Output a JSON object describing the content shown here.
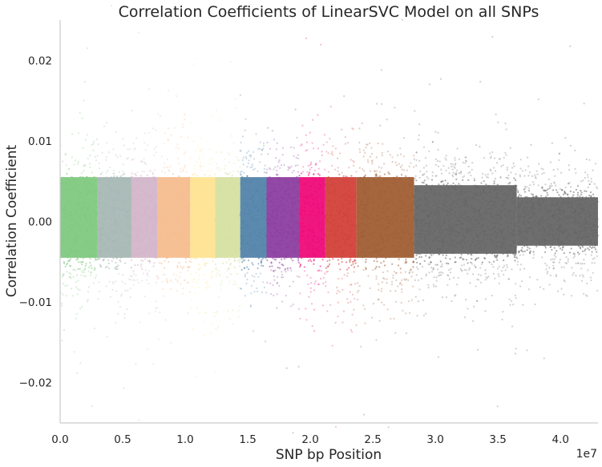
{
  "chart_data": {
    "type": "scatter",
    "title": "Correlation Coefficients of LinearSVC Model on all SNPs",
    "xlabel": "SNP bp Position",
    "ylabel": "Correlation Coefficient",
    "x_offset_label": "1e7",
    "xlim": [
      0,
      4.3
    ],
    "ylim": [
      -0.025,
      0.025
    ],
    "x_ticks": [
      0.0,
      0.5,
      1.0,
      1.5,
      2.0,
      2.5,
      3.0,
      3.5,
      4.0
    ],
    "x_tick_labels": [
      "0.0",
      "0.5",
      "1.0",
      "1.5",
      "2.0",
      "2.5",
      "3.0",
      "3.5",
      "4.0"
    ],
    "y_ticks": [
      0.02,
      0.01,
      0.0,
      -0.01,
      -0.02
    ],
    "y_tick_labels": [
      "0.02",
      "0.01",
      "0.00",
      "−0.01",
      "−0.02"
    ],
    "grid": false,
    "series": [
      {
        "x_range": [
          0.0,
          0.3
        ],
        "core_spread": [
          -0.0055,
          0.0065
        ],
        "color": "#7fc97f"
      },
      {
        "x_range": [
          0.3,
          0.57
        ],
        "core_spread": [
          -0.0055,
          0.0065
        ],
        "color": "#a6b8b5"
      },
      {
        "x_range": [
          0.57,
          0.78
        ],
        "core_spread": [
          -0.0055,
          0.0065
        ],
        "color": "#d3b5c9"
      },
      {
        "x_range": [
          0.78,
          1.04
        ],
        "core_spread": [
          -0.0055,
          0.0065
        ],
        "color": "#f6bd8f"
      },
      {
        "x_range": [
          1.04,
          1.24
        ],
        "core_spread": [
          -0.0055,
          0.0065
        ],
        "color": "#fee391"
      },
      {
        "x_range": [
          1.24,
          1.44
        ],
        "core_spread": [
          -0.0055,
          0.0065
        ],
        "color": "#d6e0a2"
      },
      {
        "x_range": [
          1.44,
          1.65
        ],
        "core_spread": [
          -0.0055,
          0.0065
        ],
        "color": "#5384aa"
      },
      {
        "x_range": [
          1.65,
          1.91
        ],
        "core_spread": [
          -0.0055,
          0.0065
        ],
        "color": "#8c3ea0"
      },
      {
        "x_range": [
          1.91,
          2.12
        ],
        "core_spread": [
          -0.0055,
          0.0065
        ],
        "color": "#ee0b79"
      },
      {
        "x_range": [
          2.12,
          2.37
        ],
        "core_spread": [
          -0.0055,
          0.0065
        ],
        "color": "#d2413a"
      },
      {
        "x_range": [
          2.37,
          2.83
        ],
        "core_spread": [
          -0.0055,
          0.0065
        ],
        "color": "#a05e34"
      },
      {
        "x_range": [
          2.83,
          3.65
        ],
        "core_spread": [
          -0.005,
          0.0055
        ],
        "color": "#666666"
      },
      {
        "x_range": [
          3.65,
          4.3
        ],
        "core_spread": [
          -0.004,
          0.004
        ],
        "color": "#666666"
      }
    ]
  }
}
